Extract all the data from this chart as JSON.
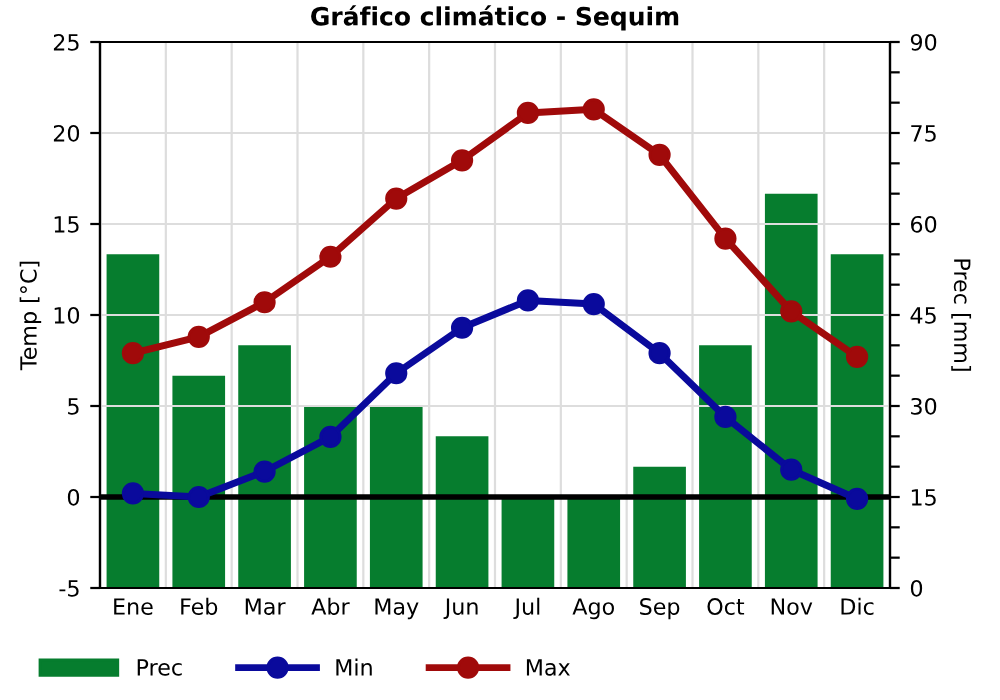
{
  "chart_data": {
    "type": "bar",
    "title": "Gráfico climático - Sequim",
    "ylabel": "Temp [°C]",
    "y2label": "Prec [mm]",
    "categories": [
      "Ene",
      "Feb",
      "Mar",
      "Abr",
      "May",
      "Jun",
      "Jul",
      "Ago",
      "Sep",
      "Oct",
      "Nov",
      "Dic"
    ],
    "series": [
      {
        "name": "Prec",
        "axis": "y2",
        "color": "#067d2e",
        "values": [
          55,
          35,
          40,
          30,
          30,
          25,
          15,
          15,
          20,
          40,
          65,
          55
        ]
      },
      {
        "name": "Min",
        "type": "line",
        "axis": "y",
        "color": "#0a0a9c",
        "marker": "circle",
        "values": [
          0.2,
          0.0,
          1.4,
          3.3,
          6.8,
          9.3,
          10.8,
          10.6,
          7.9,
          4.4,
          1.5,
          -0.1
        ]
      },
      {
        "name": "Max",
        "type": "line",
        "axis": "y",
        "color": "#a00a0a",
        "marker": "circle",
        "values": [
          7.9,
          8.8,
          10.7,
          13.2,
          16.4,
          18.5,
          21.1,
          21.3,
          18.8,
          14.2,
          10.2,
          7.7
        ]
      }
    ],
    "ylim": [
      -5,
      25
    ],
    "yticks": [
      -5,
      0,
      5,
      10,
      15,
      20,
      25
    ],
    "y2lim": [
      0,
      90
    ],
    "y2ticks": [
      0,
      {
        "value": 5,
        "label": null
      },
      {
        "value": 10,
        "label": null
      },
      15,
      {
        "value": 20,
        "label": null
      },
      {
        "value": 25,
        "label": null
      },
      30,
      {
        "value": 35,
        "label": null
      },
      {
        "value": 40,
        "label": null
      },
      45,
      {
        "value": 50,
        "label": null
      },
      {
        "value": 55,
        "label": null
      },
      60,
      {
        "value": 65,
        "label": null
      },
      {
        "value": 70,
        "label": null
      },
      75,
      {
        "value": 80,
        "label": null
      },
      {
        "value": 85,
        "label": null
      },
      90
    ],
    "ref_lines": [
      {
        "axis": "y",
        "value": 0,
        "color": "#000000"
      }
    ],
    "grid": true,
    "legend": "bottom left"
  }
}
